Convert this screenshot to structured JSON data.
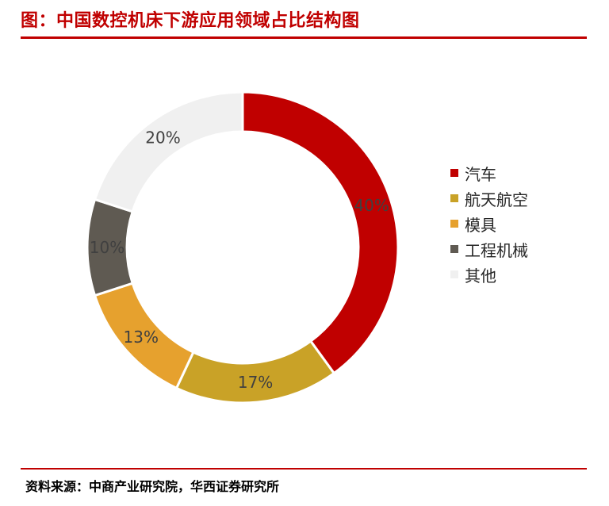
{
  "header": {
    "title": "图：中国数控机床下游应用领域占比结构图"
  },
  "footer": {
    "source": "资料来源：中商产业研究院，华西证券研究所"
  },
  "chart_data": {
    "type": "pie",
    "style": "donut",
    "title": "",
    "categories": [
      "汽车",
      "航天航空",
      "模具",
      "工程机械",
      "其他"
    ],
    "values": [
      40,
      17,
      13,
      10,
      20
    ],
    "labels": [
      "40%",
      "17%",
      "13%",
      "10%",
      "20%"
    ],
    "unit": "%",
    "legend_position": "right",
    "colors": [
      "#c00000",
      "#c9a227",
      "#e6a12e",
      "#5f5a52",
      "#f0f0f0"
    ]
  }
}
